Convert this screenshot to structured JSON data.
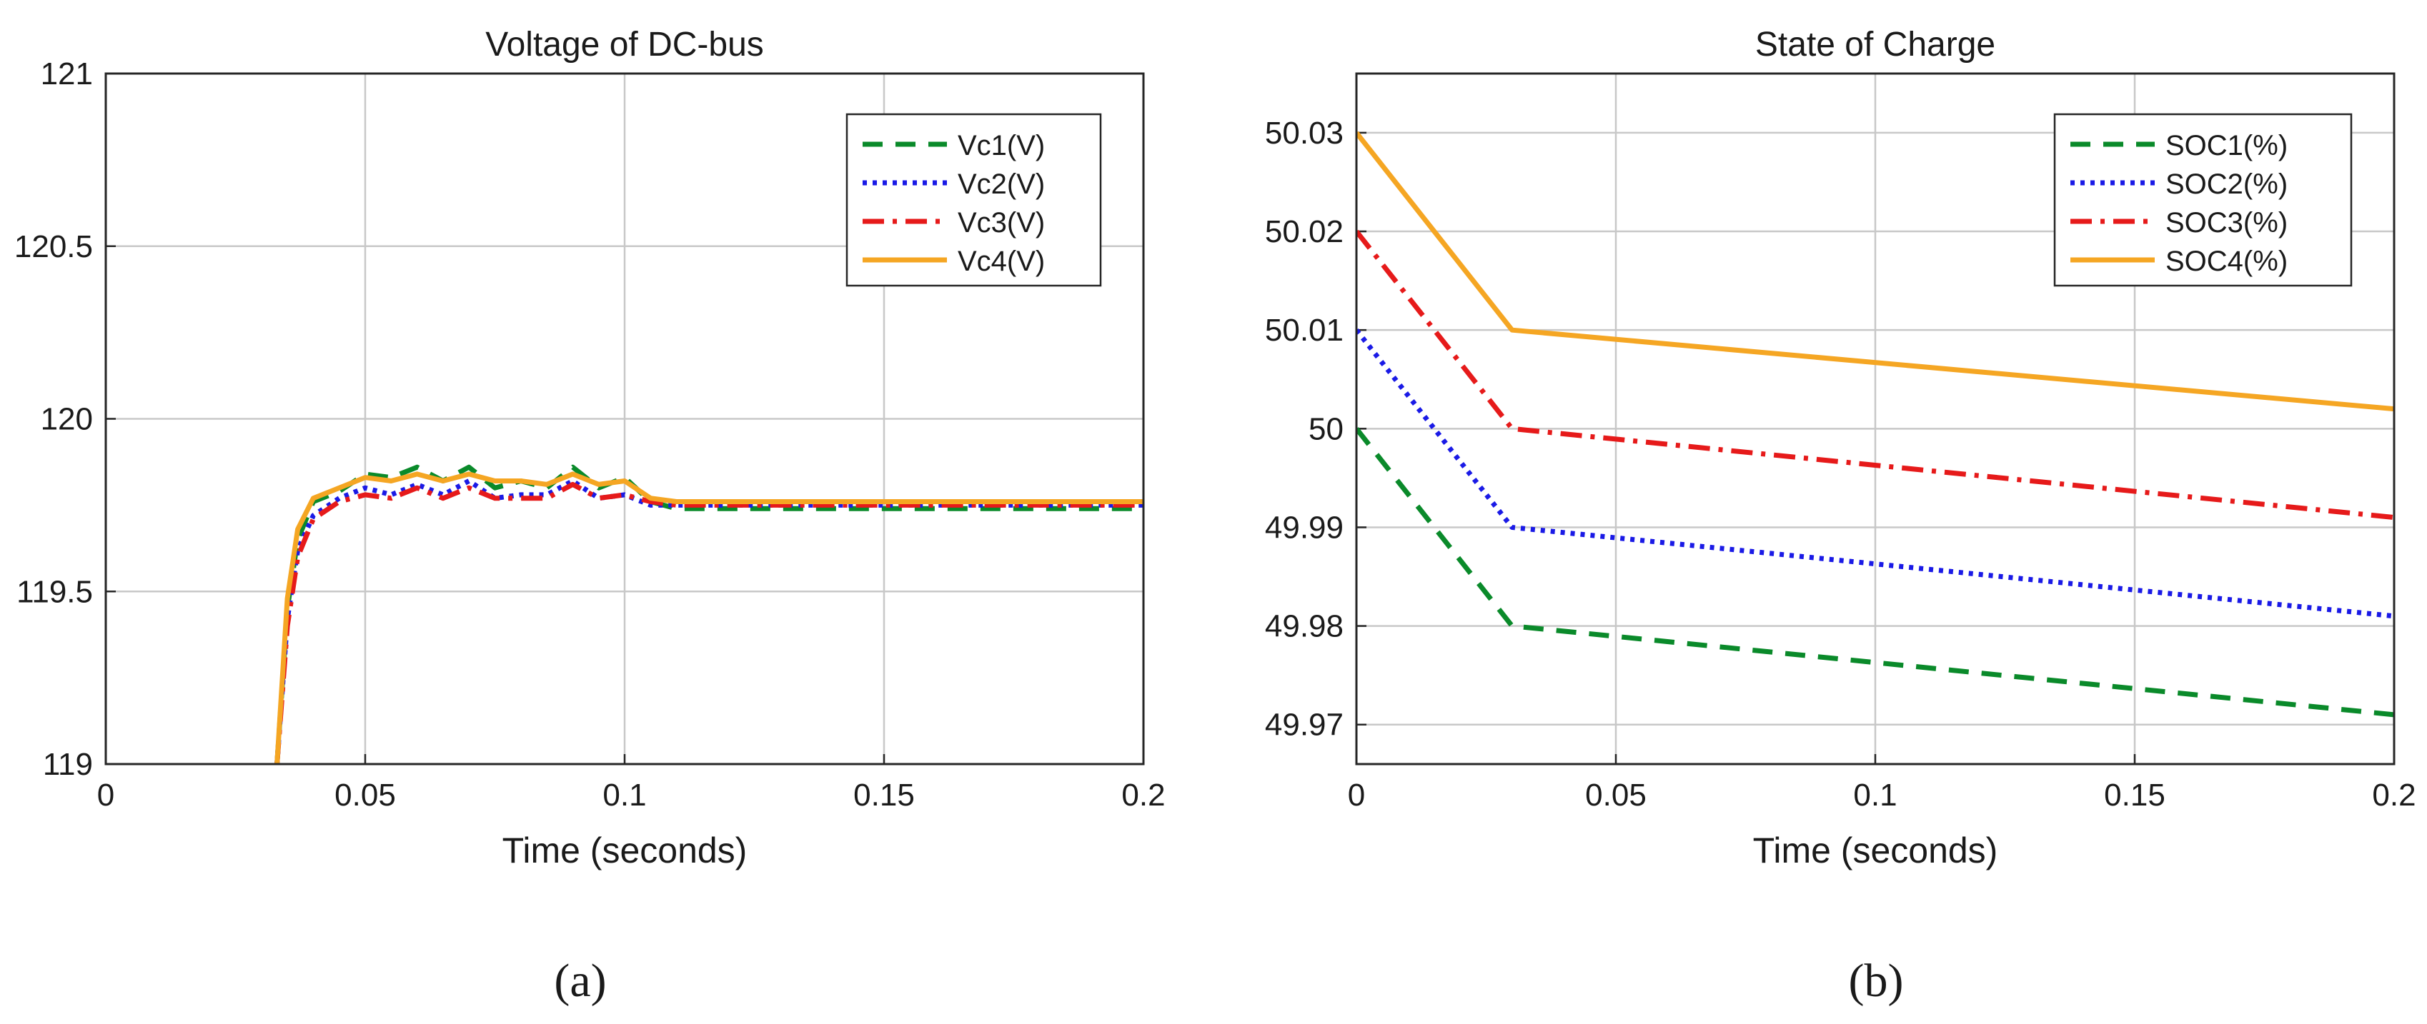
{
  "chart_data": [
    {
      "type": "line",
      "title": "Voltage of DC-bus",
      "xlabel": "Time (seconds)",
      "ylabel": "",
      "xlim": [
        0,
        0.2
      ],
      "ylim": [
        119,
        121
      ],
      "xticks": [
        "0",
        "0.05",
        "0.1",
        "0.15",
        "0.2"
      ],
      "yticks": [
        "119",
        "119.5",
        "120",
        "120.5",
        "121"
      ],
      "grid": true,
      "legend_position": "top-right",
      "caption": "(a)",
      "series": [
        {
          "name": "Vc1(V)",
          "color": "#0a8a2a",
          "style": "dashed",
          "x": [
            0.033,
            0.035,
            0.037,
            0.04,
            0.045,
            0.05,
            0.055,
            0.06,
            0.065,
            0.07,
            0.075,
            0.08,
            0.085,
            0.09,
            0.095,
            0.1,
            0.105,
            0.11,
            0.12,
            0.13,
            0.14,
            0.15,
            0.16,
            0.17,
            0.18,
            0.19,
            0.2
          ],
          "y": [
            119.0,
            119.45,
            119.65,
            119.76,
            119.79,
            119.84,
            119.83,
            119.86,
            119.82,
            119.86,
            119.8,
            119.82,
            119.8,
            119.86,
            119.8,
            119.83,
            119.76,
            119.74,
            119.74,
            119.74,
            119.74,
            119.74,
            119.74,
            119.74,
            119.74,
            119.74,
            119.74
          ]
        },
        {
          "name": "Vc2(V)",
          "color": "#1a1ae6",
          "style": "dotted",
          "x": [
            0.033,
            0.035,
            0.037,
            0.04,
            0.045,
            0.05,
            0.055,
            0.06,
            0.065,
            0.07,
            0.075,
            0.08,
            0.085,
            0.09,
            0.095,
            0.1,
            0.105,
            0.11,
            0.12,
            0.13,
            0.14,
            0.15,
            0.16,
            0.17,
            0.18,
            0.19,
            0.2
          ],
          "y": [
            119.0,
            119.42,
            119.62,
            119.72,
            119.77,
            119.8,
            119.78,
            119.81,
            119.78,
            119.82,
            119.77,
            119.78,
            119.78,
            119.82,
            119.77,
            119.78,
            119.75,
            119.75,
            119.75,
            119.75,
            119.75,
            119.75,
            119.75,
            119.75,
            119.75,
            119.75,
            119.75
          ]
        },
        {
          "name": "Vc3(V)",
          "color": "#e61a1a",
          "style": "dashdot",
          "x": [
            0.033,
            0.035,
            0.037,
            0.04,
            0.045,
            0.05,
            0.055,
            0.06,
            0.065,
            0.07,
            0.075,
            0.08,
            0.085,
            0.09,
            0.095,
            0.1,
            0.105,
            0.11,
            0.12,
            0.13,
            0.14,
            0.15,
            0.16,
            0.17,
            0.18,
            0.19,
            0.2
          ],
          "y": [
            119.0,
            119.4,
            119.6,
            119.71,
            119.76,
            119.78,
            119.77,
            119.8,
            119.77,
            119.8,
            119.77,
            119.77,
            119.77,
            119.81,
            119.77,
            119.78,
            119.76,
            119.75,
            119.75,
            119.75,
            119.75,
            119.75,
            119.75,
            119.75,
            119.75,
            119.75,
            119.75
          ]
        },
        {
          "name": "Vc4(V)",
          "color": "#f5a623",
          "style": "solid",
          "x": [
            0.033,
            0.035,
            0.037,
            0.04,
            0.045,
            0.05,
            0.055,
            0.06,
            0.065,
            0.07,
            0.075,
            0.08,
            0.085,
            0.09,
            0.095,
            0.1,
            0.105,
            0.11,
            0.12,
            0.13,
            0.14,
            0.15,
            0.16,
            0.17,
            0.18,
            0.19,
            0.2
          ],
          "y": [
            119.0,
            119.48,
            119.68,
            119.77,
            119.8,
            119.83,
            119.82,
            119.84,
            119.82,
            119.84,
            119.82,
            119.82,
            119.81,
            119.84,
            119.81,
            119.82,
            119.77,
            119.76,
            119.76,
            119.76,
            119.76,
            119.76,
            119.76,
            119.76,
            119.76,
            119.76,
            119.76
          ]
        }
      ]
    },
    {
      "type": "line",
      "title": "State of Charge",
      "xlabel": "Time (seconds)",
      "ylabel": "",
      "xlim": [
        0,
        0.2
      ],
      "ylim": [
        49.966,
        50.036
      ],
      "xticks": [
        "0",
        "0.05",
        "0.1",
        "0.15",
        "0.2"
      ],
      "yticks": [
        "49.97",
        "49.98",
        "49.99",
        "50",
        "50.01",
        "50.02",
        "50.03"
      ],
      "grid": true,
      "legend_position": "top-right",
      "caption": "(b)",
      "series": [
        {
          "name": "SOC1(%)",
          "color": "#0a8a2a",
          "style": "dashed",
          "x": [
            0,
            0.03,
            0.2
          ],
          "y": [
            50.0,
            49.98,
            49.971
          ]
        },
        {
          "name": "SOC2(%)",
          "color": "#1a1ae6",
          "style": "dotted",
          "x": [
            0,
            0.03,
            0.2
          ],
          "y": [
            50.01,
            49.99,
            49.981
          ]
        },
        {
          "name": "SOC3(%)",
          "color": "#e61a1a",
          "style": "dashdot",
          "x": [
            0,
            0.03,
            0.2
          ],
          "y": [
            50.02,
            50.0,
            49.991
          ]
        },
        {
          "name": "SOC4(%)",
          "color": "#f5a623",
          "style": "solid",
          "x": [
            0,
            0.03,
            0.2
          ],
          "y": [
            50.03,
            50.01,
            50.002
          ]
        }
      ]
    }
  ]
}
